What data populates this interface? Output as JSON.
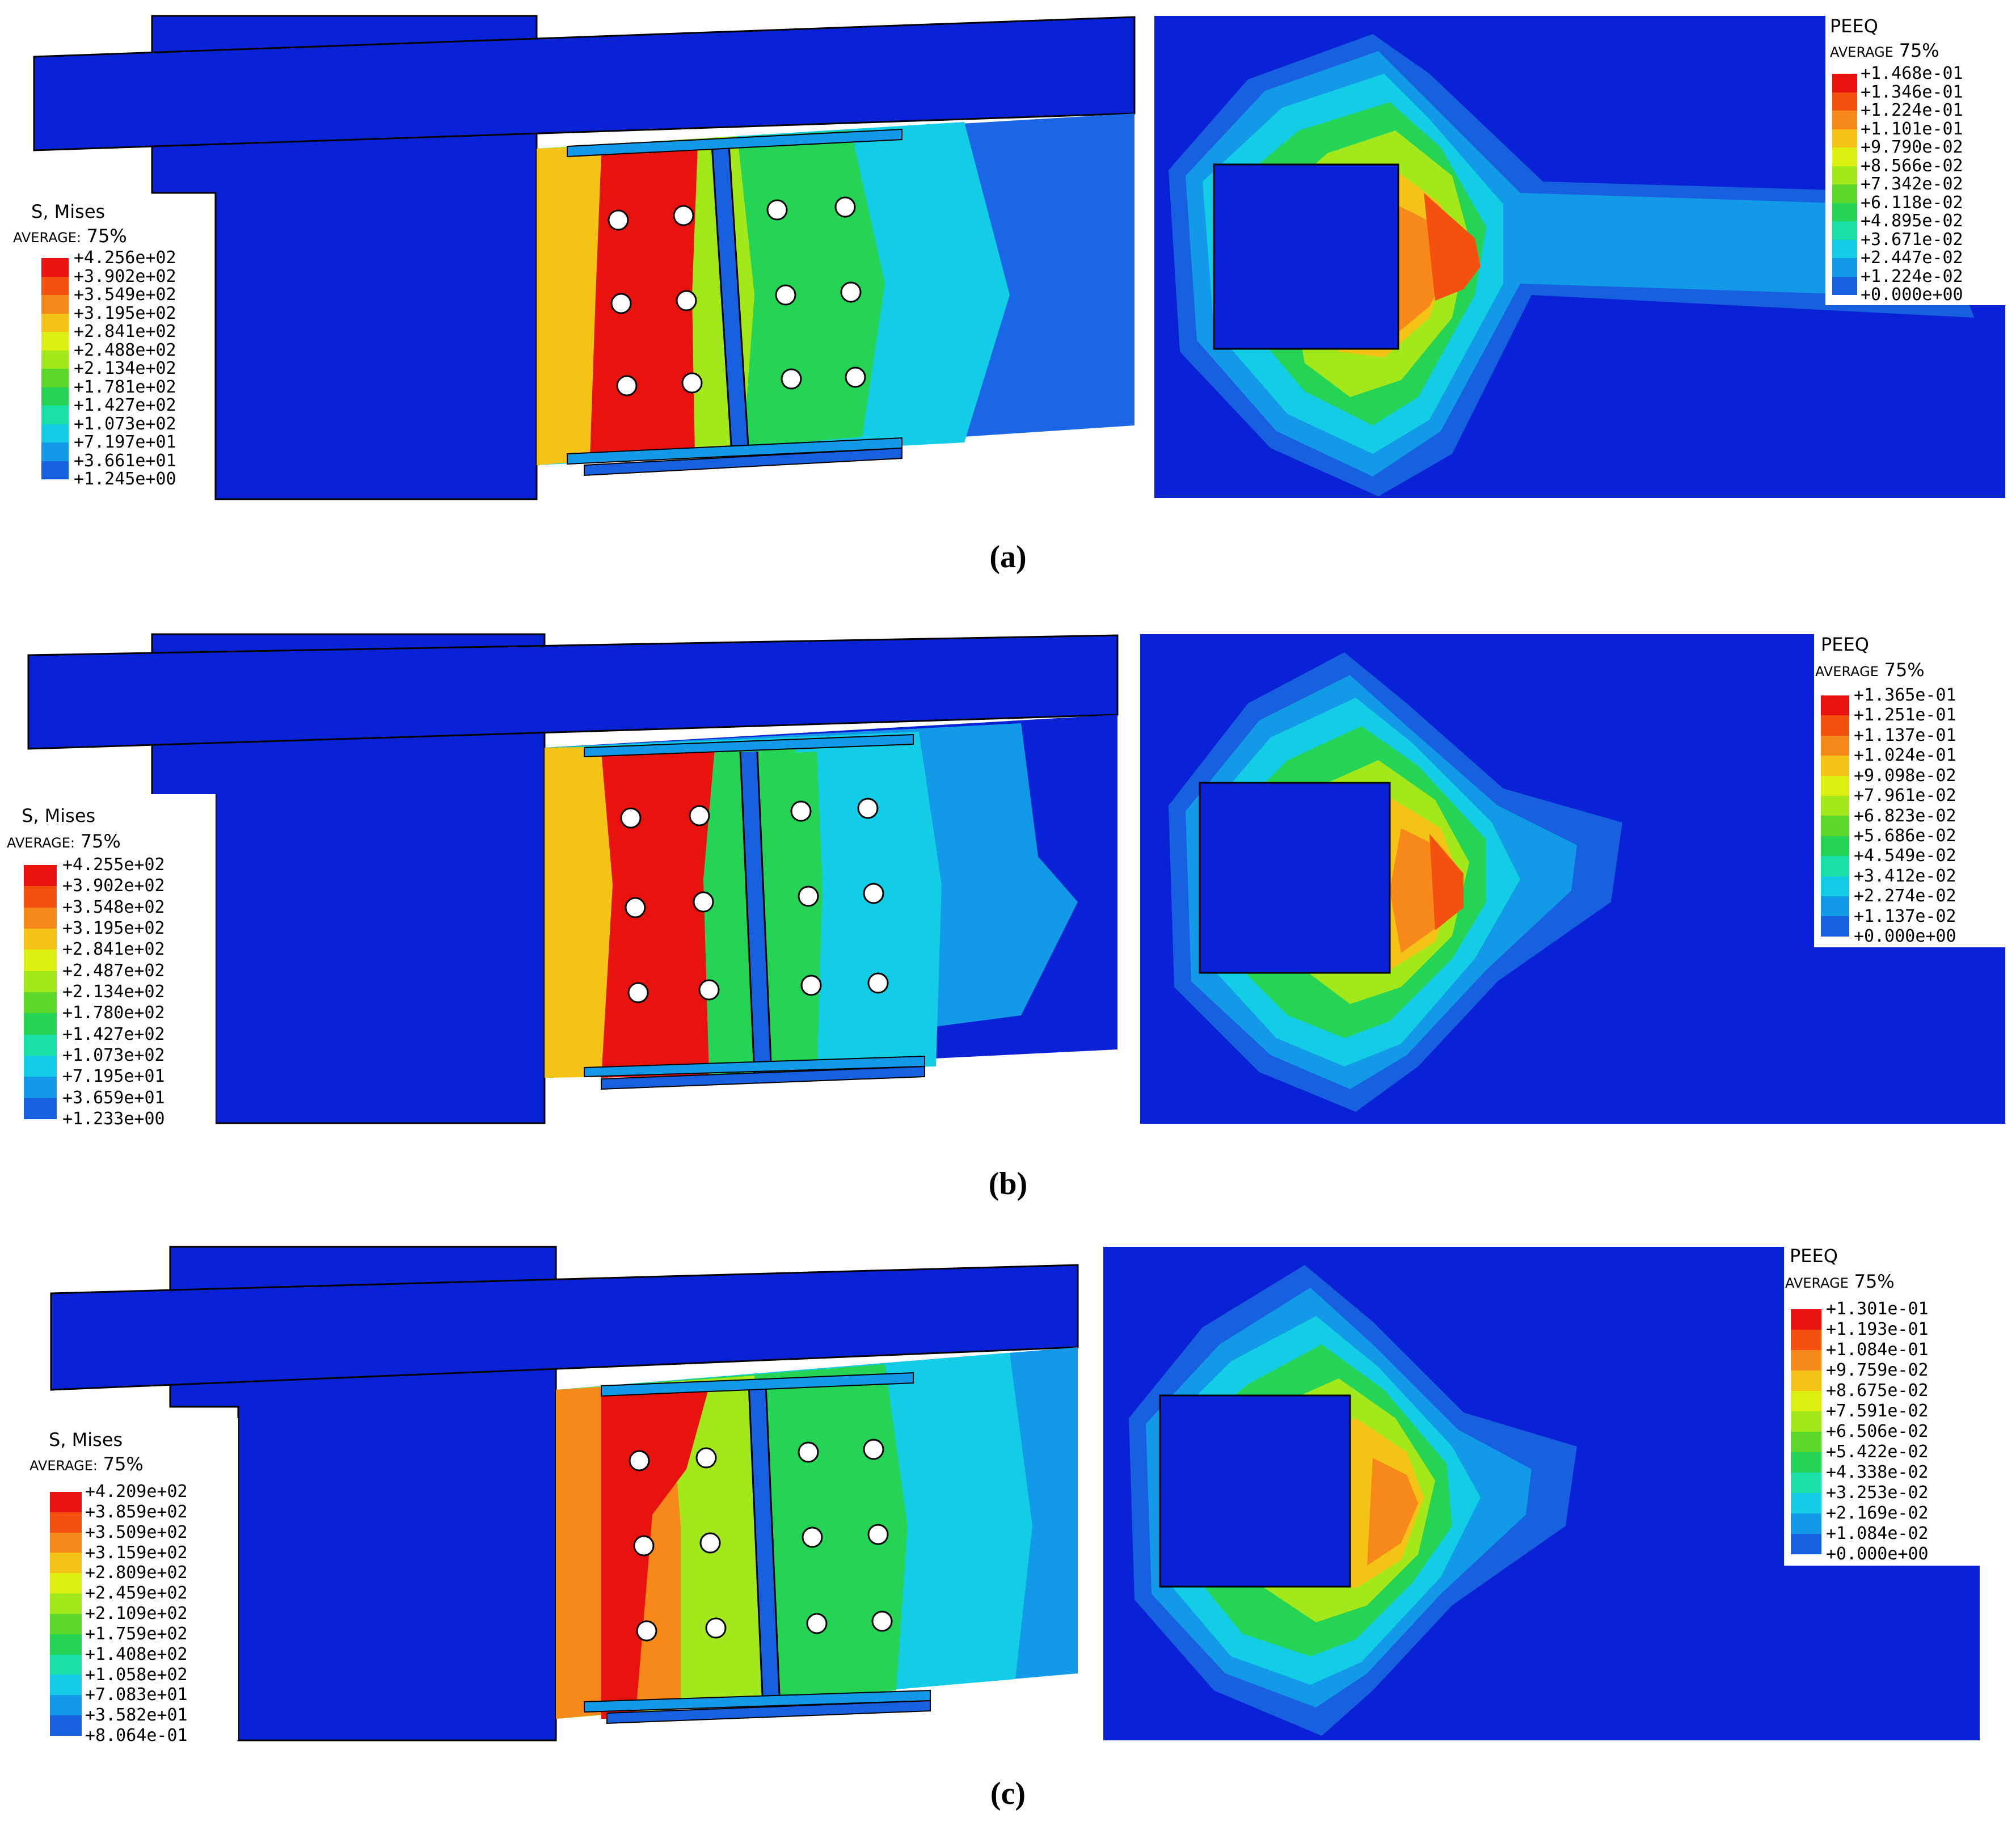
{
  "panels": [
    {
      "caption": "(a)",
      "mises": {
        "title": "S, Mises",
        "avg_label": "AVERAGE:",
        "avg_value": "75%",
        "values": [
          "+4.256e+02",
          "+3.902e+02",
          "+3.549e+02",
          "+3.195e+02",
          "+2.841e+02",
          "+2.488e+02",
          "+2.134e+02",
          "+1.781e+02",
          "+1.427e+02",
          "+1.073e+02",
          "+7.197e+01",
          "+3.661e+01",
          "+1.245e+00"
        ]
      },
      "peeq": {
        "title": "PEEQ",
        "avg_label": "AVERAGE",
        "avg_value": "75%",
        "values": [
          "+1.468e-01",
          "+1.346e-01",
          "+1.224e-01",
          "+1.101e-01",
          "+9.790e-02",
          "+8.566e-02",
          "+7.342e-02",
          "+6.118e-02",
          "+4.895e-02",
          "+3.671e-02",
          "+2.447e-02",
          "+1.224e-02",
          "+0.000e+00"
        ]
      }
    },
    {
      "caption": "(b)",
      "mises": {
        "title": "S, Mises",
        "avg_label": "AVERAGE:",
        "avg_value": "75%",
        "values": [
          "+4.255e+02",
          "+3.902e+02",
          "+3.548e+02",
          "+3.195e+02",
          "+2.841e+02",
          "+2.487e+02",
          "+2.134e+02",
          "+1.780e+02",
          "+1.427e+02",
          "+1.073e+02",
          "+7.195e+01",
          "+3.659e+01",
          "+1.233e+00"
        ]
      },
      "peeq": {
        "title": "PEEQ",
        "avg_label": "AVERAGE",
        "avg_value": "75%",
        "values": [
          "+1.365e-01",
          "+1.251e-01",
          "+1.137e-01",
          "+1.024e-01",
          "+9.098e-02",
          "+7.961e-02",
          "+6.823e-02",
          "+5.686e-02",
          "+4.549e-02",
          "+3.412e-02",
          "+2.274e-02",
          "+1.137e-02",
          "+0.000e+00"
        ]
      }
    },
    {
      "caption": "(c)",
      "mises": {
        "title": "S, Mises",
        "avg_label": "AVERAGE:",
        "avg_value": "75%",
        "values": [
          "+4.209e+02",
          "+3.859e+02",
          "+3.509e+02",
          "+3.159e+02",
          "+2.809e+02",
          "+2.459e+02",
          "+2.109e+02",
          "+1.759e+02",
          "+1.408e+02",
          "+1.058e+02",
          "+7.083e+01",
          "+3.582e+01",
          "+8.064e-01"
        ]
      },
      "peeq": {
        "title": "PEEQ",
        "avg_label": "AVERAGE",
        "avg_value": "75%",
        "values": [
          "+1.301e-01",
          "+1.193e-01",
          "+1.084e-01",
          "+9.759e-02",
          "+8.675e-02",
          "+7.591e-02",
          "+6.506e-02",
          "+5.422e-02",
          "+4.338e-02",
          "+3.253e-02",
          "+2.169e-02",
          "+1.084e-02",
          "+0.000e+00"
        ]
      }
    }
  ],
  "colors": {
    "legend_scale": [
      "#e8120e",
      "#f4500f",
      "#f7891a",
      "#f4c315",
      "#dcee12",
      "#a2e81a",
      "#5cd82a",
      "#26d455",
      "#18e0a6",
      "#13cde6",
      "#1299e8",
      "#1760e0",
      "#0a22d6"
    ],
    "model_blue": "#0a22d6"
  }
}
